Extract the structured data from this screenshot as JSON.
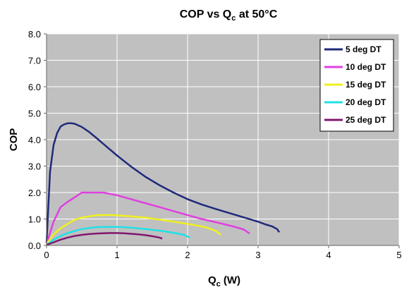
{
  "chart_data": {
    "type": "line",
    "title": {
      "main": "COP vs Q",
      "sub": "c",
      "rest": " at 50°C"
    },
    "xlabel": {
      "main": "Q",
      "sub": "c",
      "rest": " (W)"
    },
    "ylabel": "COP",
    "xlim": [
      0,
      5
    ],
    "ylim": [
      0,
      8
    ],
    "x_ticks": [
      "0",
      "1",
      "2",
      "3",
      "4",
      "5"
    ],
    "y_ticks": [
      "0.0",
      "1.0",
      "2.0",
      "3.0",
      "4.0",
      "5.0",
      "6.0",
      "7.0",
      "8.0"
    ],
    "grid": true,
    "plot_background": "#c0c0c0",
    "legend_position": "top-right",
    "series": [
      {
        "name": "5 deg DT",
        "color": "#1f2a7a",
        "x": [
          0,
          0.05,
          0.1,
          0.15,
          0.2,
          0.25,
          0.3,
          0.35,
          0.4,
          0.5,
          0.6,
          0.7,
          0.8,
          1.0,
          1.2,
          1.4,
          1.6,
          1.8,
          2.0,
          2.2,
          2.4,
          2.6,
          2.8,
          3.0,
          3.1,
          3.2,
          3.27,
          3.3
        ],
        "y": [
          0.1,
          2.8,
          3.8,
          4.25,
          4.5,
          4.58,
          4.62,
          4.62,
          4.6,
          4.48,
          4.3,
          4.08,
          3.85,
          3.4,
          2.98,
          2.6,
          2.28,
          2.0,
          1.75,
          1.55,
          1.38,
          1.22,
          1.06,
          0.9,
          0.8,
          0.72,
          0.62,
          0.5
        ]
      },
      {
        "name": "10 deg DT",
        "color": "#e040e0",
        "x": [
          0,
          0.1,
          0.2,
          0.3,
          0.4,
          0.5,
          0.6,
          0.7,
          0.8,
          1.0,
          1.2,
          1.4,
          1.6,
          1.8,
          2.0,
          2.2,
          2.4,
          2.6,
          2.7,
          2.8,
          2.88
        ],
        "y": [
          0.05,
          0.9,
          1.45,
          1.65,
          1.82,
          2.0,
          2.0,
          2.0,
          2.0,
          1.9,
          1.75,
          1.6,
          1.45,
          1.3,
          1.15,
          1.0,
          0.88,
          0.75,
          0.68,
          0.6,
          0.45
        ]
      },
      {
        "name": "15 deg DT",
        "color": "#f0f020",
        "x": [
          0,
          0.1,
          0.2,
          0.3,
          0.4,
          0.5,
          0.6,
          0.7,
          0.8,
          0.9,
          1.0,
          1.2,
          1.4,
          1.6,
          1.8,
          2.0,
          2.2,
          2.3,
          2.4,
          2.47
        ],
        "y": [
          0.05,
          0.42,
          0.65,
          0.82,
          0.97,
          1.05,
          1.1,
          1.14,
          1.15,
          1.15,
          1.14,
          1.1,
          1.05,
          0.98,
          0.9,
          0.82,
          0.72,
          0.65,
          0.55,
          0.4
        ]
      },
      {
        "name": "20 deg DT",
        "color": "#20e0e8",
        "x": [
          0,
          0.1,
          0.2,
          0.3,
          0.4,
          0.5,
          0.6,
          0.7,
          0.8,
          0.9,
          1.0,
          1.1,
          1.2,
          1.4,
          1.6,
          1.8,
          1.95,
          2.03
        ],
        "y": [
          0.02,
          0.22,
          0.36,
          0.47,
          0.55,
          0.62,
          0.66,
          0.69,
          0.7,
          0.7,
          0.7,
          0.69,
          0.67,
          0.62,
          0.56,
          0.48,
          0.4,
          0.3
        ]
      },
      {
        "name": "25 deg DT",
        "color": "#801870",
        "x": [
          0,
          0.1,
          0.2,
          0.3,
          0.4,
          0.5,
          0.6,
          0.7,
          0.8,
          0.9,
          1.0,
          1.1,
          1.2,
          1.3,
          1.4,
          1.5,
          1.6,
          1.64
        ],
        "y": [
          0.02,
          0.12,
          0.22,
          0.3,
          0.36,
          0.4,
          0.43,
          0.45,
          0.46,
          0.47,
          0.47,
          0.46,
          0.44,
          0.42,
          0.39,
          0.35,
          0.3,
          0.26
        ]
      }
    ]
  }
}
